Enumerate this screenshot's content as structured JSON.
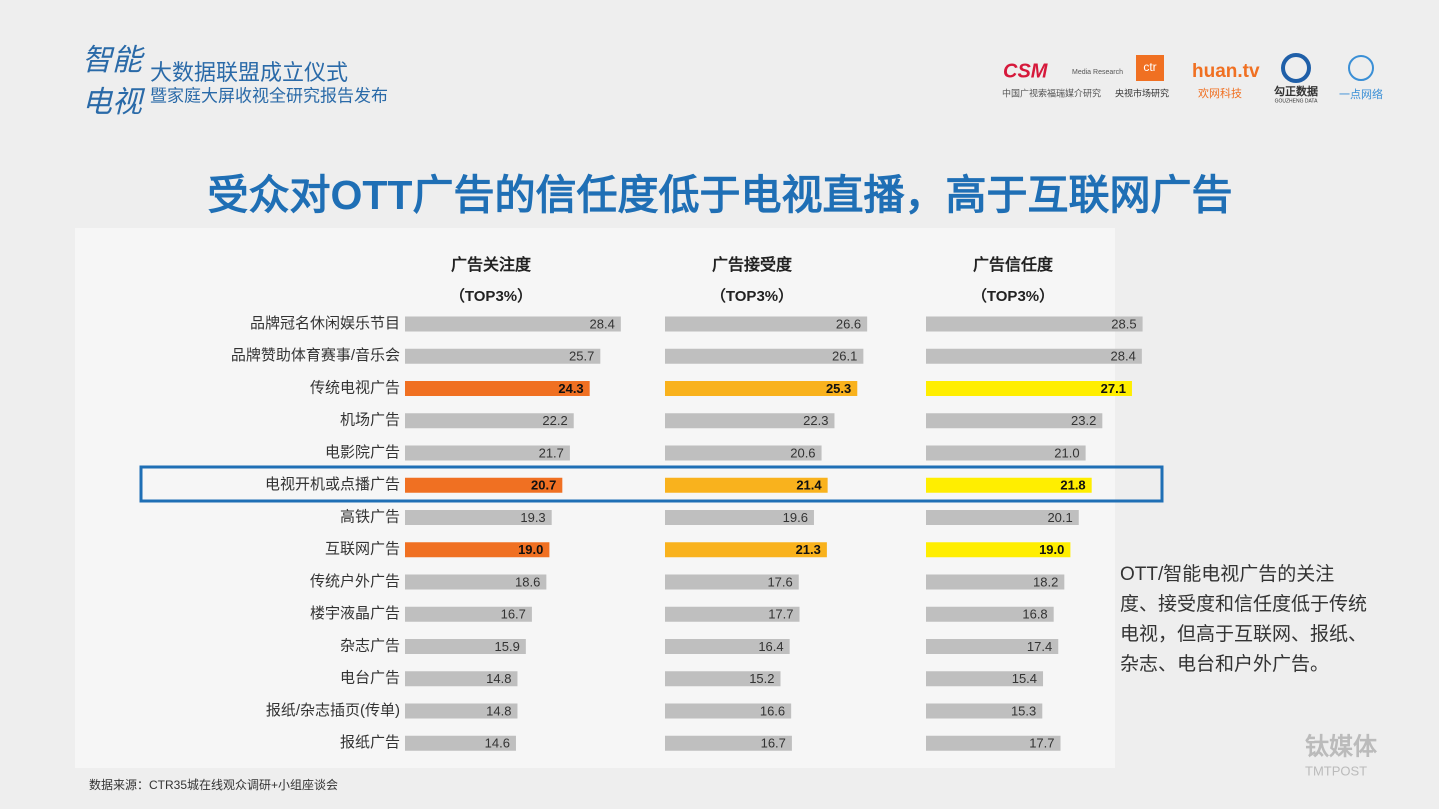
{
  "header": {
    "logo_text": [
      "智能",
      "电视"
    ],
    "event_title": "大数据联盟成立仪式",
    "event_subtitle": "暨家庭大屏收视全研究报告发布",
    "partners": [
      {
        "name": "CSM",
        "sub": "Media Research",
        "caption": "中国广视索福瑞媒介研究"
      },
      {
        "name": "ctr",
        "caption": "央视市场研究"
      },
      {
        "name": "huan.tv",
        "caption": "欢网科技"
      },
      {
        "name": "勾正数据",
        "sub": "GOUZHENG DATA"
      },
      {
        "name": "一点网络"
      }
    ]
  },
  "chart_data": {
    "type": "bar",
    "title": "受众对OTT广告的信任度低于电视直播，高于互联网广告",
    "categories": [
      "品牌冠名休闲娱乐节目",
      "品牌赞助体育赛事/音乐会",
      "传统电视广告",
      "机场广告",
      "电影院广告",
      "电视开机或点播广告",
      "高铁广告",
      "互联网广告",
      "传统户外广告",
      "楼宇液晶广告",
      "杂志广告",
      "电台广告",
      "报纸/杂志插页(传单)",
      "报纸广告"
    ],
    "series": [
      {
        "name": "广告关注度",
        "subtitle": "（TOP3%）",
        "values": [
          28.4,
          25.7,
          24.3,
          22.2,
          21.7,
          20.7,
          19.3,
          19.0,
          18.6,
          16.7,
          15.9,
          14.8,
          14.8,
          14.6
        ],
        "value_labels": [
          "28.4",
          "25.7",
          "24.3",
          "22.2",
          "21.7",
          "20.7",
          "19.3",
          "19.0",
          "18.6",
          "16.7",
          "15.9",
          "14.8",
          "14.8",
          "14.6"
        ],
        "colors": [
          "#bfbfbf",
          "#bfbfbf",
          "#f07022",
          "#bfbfbf",
          "#bfbfbf",
          "#f07022",
          "#bfbfbf",
          "#f07022",
          "#bfbfbf",
          "#bfbfbf",
          "#bfbfbf",
          "#bfbfbf",
          "#bfbfbf",
          "#bfbfbf"
        ]
      },
      {
        "name": "广告接受度",
        "subtitle": "（TOP3%）",
        "values": [
          26.6,
          26.1,
          25.3,
          22.3,
          20.6,
          21.4,
          19.6,
          21.3,
          17.6,
          17.7,
          16.4,
          15.2,
          16.6,
          16.7
        ],
        "value_labels": [
          "26.6",
          "26.1",
          "25.3",
          "22.3",
          "20.6",
          "21.4",
          "19.6",
          "21.3",
          "17.6",
          "17.7",
          "16.4",
          "15.2",
          "16.6",
          "16.7"
        ],
        "colors": [
          "#bfbfbf",
          "#bfbfbf",
          "#f9b21d",
          "#bfbfbf",
          "#bfbfbf",
          "#f9b21d",
          "#bfbfbf",
          "#f9b21d",
          "#bfbfbf",
          "#bfbfbf",
          "#bfbfbf",
          "#bfbfbf",
          "#bfbfbf",
          "#bfbfbf"
        ]
      },
      {
        "name": "广告信任度",
        "subtitle": "（TOP3%）",
        "values": [
          28.5,
          28.4,
          27.1,
          23.2,
          21.0,
          21.8,
          20.1,
          19.0,
          18.2,
          16.8,
          17.4,
          15.4,
          15.3,
          17.7
        ],
        "value_labels": [
          "28.5",
          "28.4",
          "27.1",
          "23.2",
          "21.0",
          "21.8",
          "20.1",
          "19.0",
          "18.2",
          "16.8",
          "17.4",
          "15.4",
          "15.3",
          "17.7"
        ],
        "colors": [
          "#bfbfbf",
          "#bfbfbf",
          "#ffee00",
          "#bfbfbf",
          "#bfbfbf",
          "#ffee00",
          "#bfbfbf",
          "#ffee00",
          "#bfbfbf",
          "#bfbfbf",
          "#bfbfbf",
          "#bfbfbf",
          "#bfbfbf",
          "#bfbfbf"
        ]
      }
    ],
    "note": [
      "OTT/智能电视广告的关注",
      "度、接受度和信任度低于传统",
      "电视，但高于互联网、报纸、",
      "杂志、电台和户外广告。"
    ],
    "source": "数据来源：CTR35城在线观众调研+小组座谈会"
  },
  "watermark": {
    "name": "钛媒体",
    "sub": "TMTPOST"
  }
}
